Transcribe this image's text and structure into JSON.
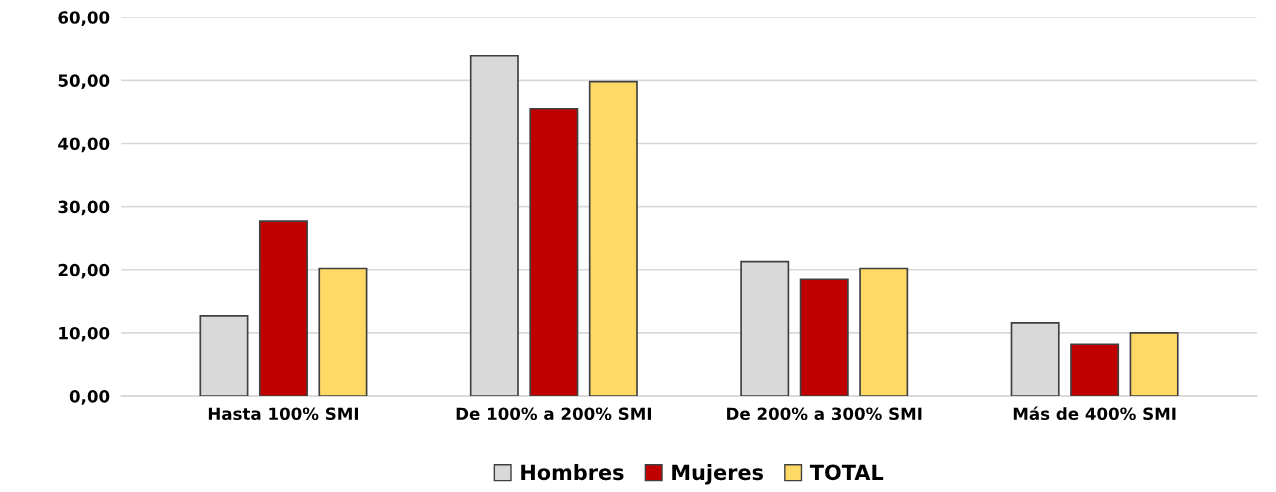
{
  "chart_data": {
    "type": "bar",
    "categories": [
      "Hasta 100% SMI",
      "De 100% a 200% SMI",
      "De 200% a 300% SMI",
      "Más de 400% SMI"
    ],
    "series": [
      {
        "name": "Hombres",
        "color": "#d9d9d9",
        "values": [
          12.7,
          53.9,
          21.3,
          11.6
        ]
      },
      {
        "name": "Mujeres",
        "color": "#c00000",
        "values": [
          27.7,
          45.5,
          18.5,
          8.2
        ]
      },
      {
        "name": "TOTAL",
        "color": "#ffd966",
        "values": [
          20.2,
          49.8,
          20.2,
          10.0
        ]
      }
    ],
    "ylim": [
      0,
      60
    ],
    "yticks": [
      {
        "value": 0,
        "label": "0,00"
      },
      {
        "value": 10,
        "label": "10,00"
      },
      {
        "value": 20,
        "label": "20,00"
      },
      {
        "value": 30,
        "label": "30,00"
      },
      {
        "value": 40,
        "label": "40,00"
      },
      {
        "value": 50,
        "label": "50,00"
      },
      {
        "value": 60,
        "label": "60,00"
      }
    ],
    "grid": "y",
    "legend": "bottom"
  }
}
